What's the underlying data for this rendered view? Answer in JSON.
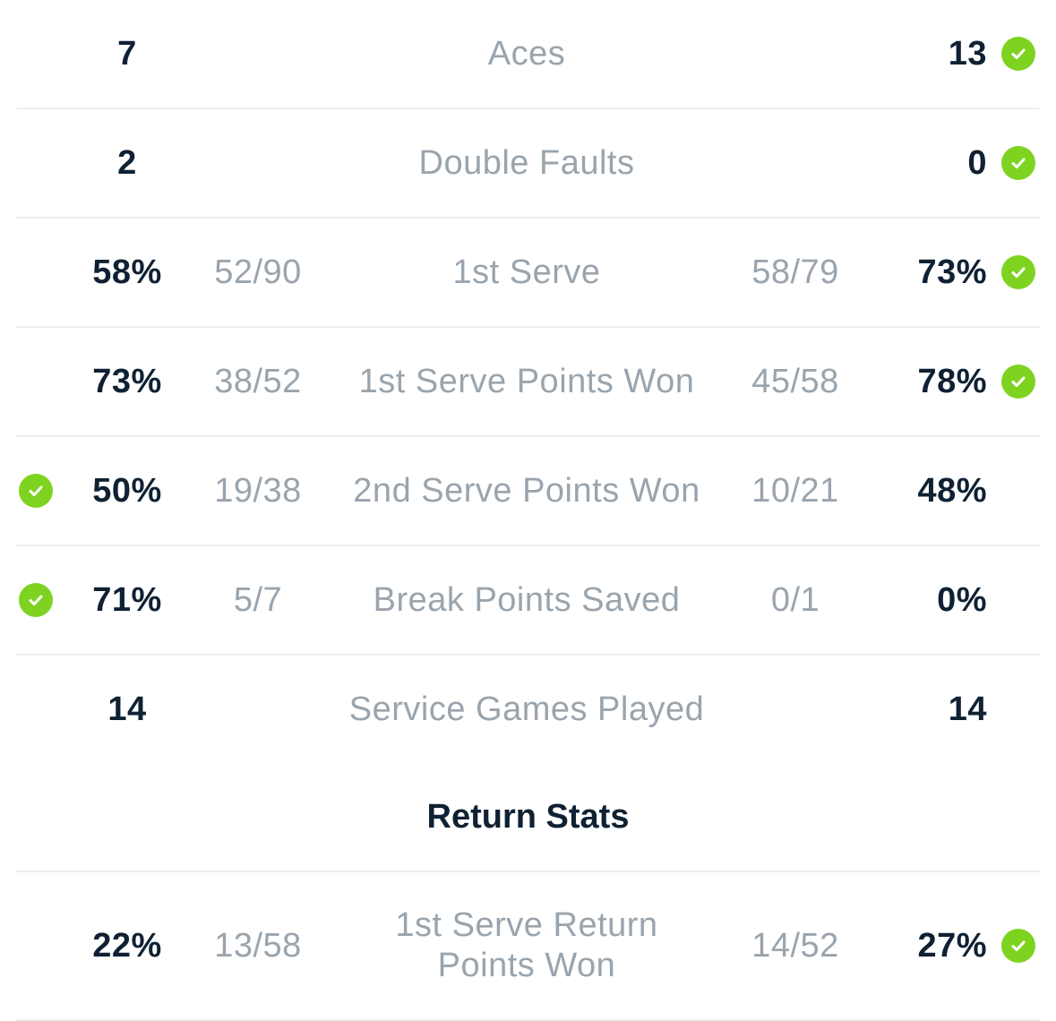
{
  "colors": {
    "winner_check": "#7ed321",
    "value_text": "#0f2133",
    "muted_text": "#9aa4ad",
    "divider": "#eceff1"
  },
  "icons": {
    "winner": "check-circle-icon"
  },
  "service_stats": [
    {
      "label": "Aces",
      "left_value": "7",
      "left_detail": "",
      "right_detail": "",
      "right_value": "13",
      "winner": "right"
    },
    {
      "label": "Double Faults",
      "left_value": "2",
      "left_detail": "",
      "right_detail": "",
      "right_value": "0",
      "winner": "right"
    },
    {
      "label": "1st Serve",
      "left_value": "58%",
      "left_detail": "52/90",
      "right_detail": "58/79",
      "right_value": "73%",
      "winner": "right"
    },
    {
      "label": "1st Serve Points Won",
      "left_value": "73%",
      "left_detail": "38/52",
      "right_detail": "45/58",
      "right_value": "78%",
      "winner": "right"
    },
    {
      "label": "2nd Serve Points Won",
      "left_value": "50%",
      "left_detail": "19/38",
      "right_detail": "10/21",
      "right_value": "48%",
      "winner": "left"
    },
    {
      "label": "Break Points Saved",
      "left_value": "71%",
      "left_detail": "5/7",
      "right_detail": "0/1",
      "right_value": "0%",
      "winner": "left"
    },
    {
      "label": "Service Games Played",
      "left_value": "14",
      "left_detail": "",
      "right_detail": "",
      "right_value": "14",
      "winner": "none"
    }
  ],
  "return_section": {
    "title": "Return Stats"
  },
  "return_stats": [
    {
      "label_line1": "1st Serve Return",
      "label_line2": "Points Won",
      "left_value": "22%",
      "left_detail": "13/58",
      "right_detail": "14/52",
      "right_value": "27%",
      "winner": "right"
    }
  ]
}
